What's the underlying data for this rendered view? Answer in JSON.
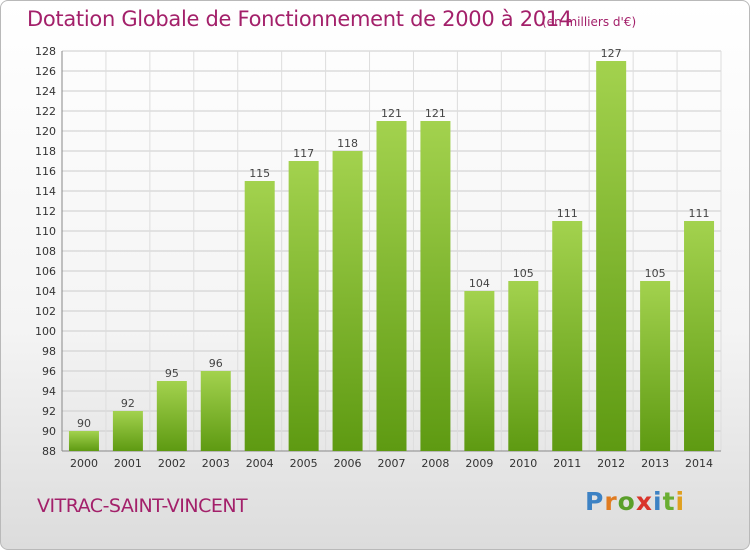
{
  "title": "Dotation Globale de Fonctionnement de 2000 à 2014",
  "subtitle": "(en milliers d'€)",
  "place_name": "VITRAC-SAINT-VINCENT",
  "logo": {
    "letters": [
      "P",
      "r",
      "o",
      "x",
      "i",
      "t",
      "i"
    ]
  },
  "colors": {
    "title": "#a3206a",
    "bar_light": "#a3d24e",
    "bar_dark": "#5e9a12",
    "grid": "#cccccc"
  },
  "chart_data": {
    "type": "bar",
    "categories": [
      "2000",
      "2001",
      "2002",
      "2003",
      "2004",
      "2005",
      "2006",
      "2007",
      "2008",
      "2009",
      "2010",
      "2011",
      "2012",
      "2013",
      "2014"
    ],
    "values": [
      90,
      92,
      95,
      96,
      115,
      117,
      118,
      121,
      121,
      104,
      105,
      111,
      127,
      105,
      111
    ],
    "ylim": [
      88,
      128
    ],
    "yticks": [
      88,
      90,
      92,
      94,
      96,
      98,
      100,
      102,
      104,
      106,
      108,
      110,
      112,
      114,
      116,
      118,
      120,
      122,
      124,
      126,
      128
    ],
    "grid": true,
    "data_labels": true
  }
}
